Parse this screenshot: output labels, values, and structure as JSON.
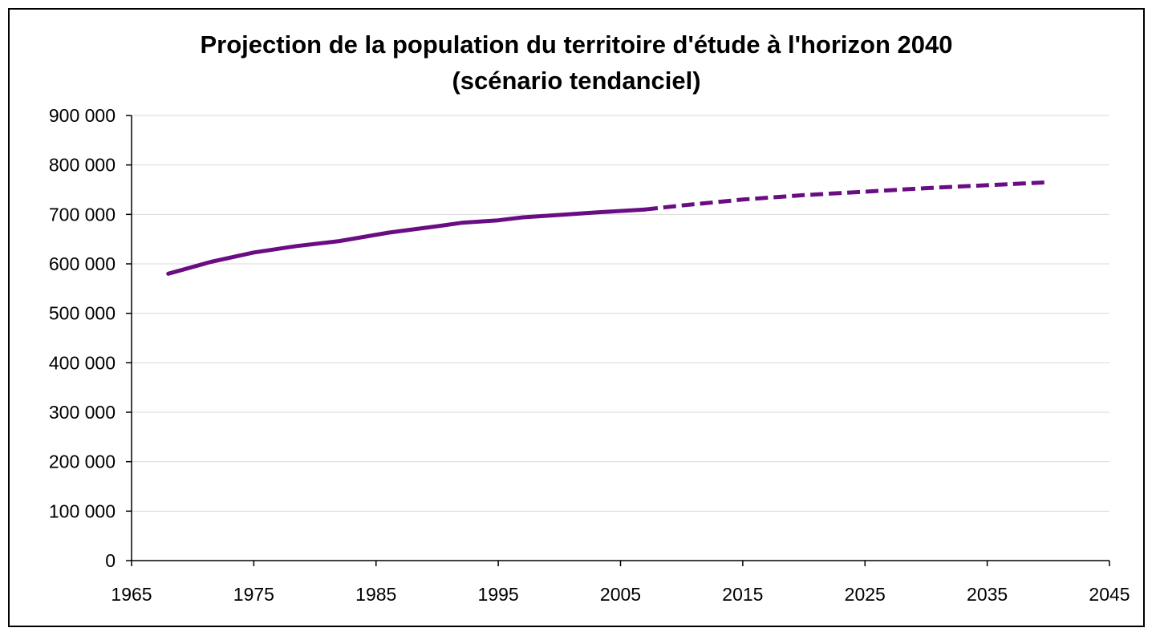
{
  "chart_data": {
    "type": "line",
    "title": "Projection de la population du territoire d'étude à l'horizon 2040",
    "subtitle": "(scénario tendanciel)",
    "xlim": [
      1965,
      2045
    ],
    "ylim": [
      0,
      900000
    ],
    "x_ticks": [
      1965,
      1975,
      1985,
      1995,
      2005,
      2015,
      2025,
      2035,
      2045
    ],
    "x_tick_labels": [
      "1965",
      "1975",
      "1985",
      "1995",
      "2005",
      "2015",
      "2025",
      "2035",
      "2045"
    ],
    "y_ticks": [
      0,
      100000,
      200000,
      300000,
      400000,
      500000,
      600000,
      700000,
      800000,
      900000
    ],
    "y_tick_labels": [
      "0",
      "100 000",
      "200 000",
      "300 000",
      "400 000",
      "500 000",
      "600 000",
      "700 000",
      "800 000",
      "900 000"
    ],
    "grid": "horizontal",
    "color": "#6a0d83",
    "series": [
      {
        "style": "solid",
        "x": [
          1968,
          1971.5,
          1975,
          1978.5,
          1982,
          1986,
          1990,
          1992,
          1995,
          1997,
          2000,
          2003,
          2007
        ],
        "y": [
          580000,
          604000,
          623000,
          636000,
          646000,
          663000,
          676000,
          683000,
          688000,
          694000,
          699000,
          704000,
          710000
        ]
      },
      {
        "style": "dashed",
        "x": [
          2007,
          2010,
          2015,
          2020,
          2025,
          2030,
          2035,
          2040
        ],
        "y": [
          710000,
          718000,
          730000,
          739000,
          746000,
          753000,
          759000,
          765000
        ]
      }
    ]
  }
}
